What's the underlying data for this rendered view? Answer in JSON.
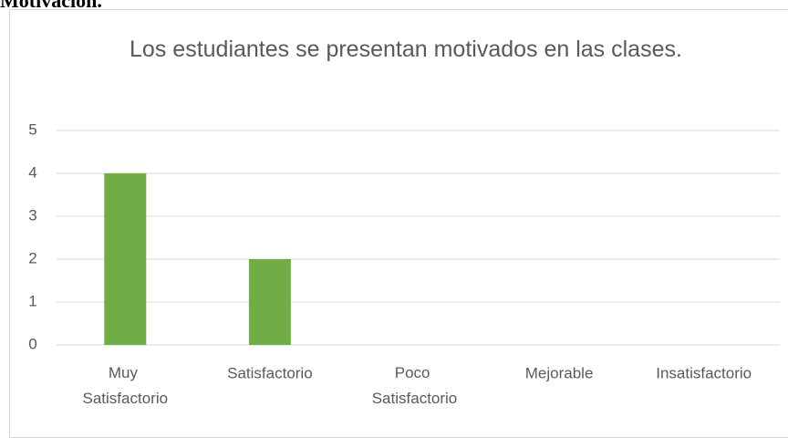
{
  "heading": "Motivación.",
  "chart_data": {
    "type": "bar",
    "title": "Los estudiantes se presentan motivados en las clases.",
    "categories": [
      "Muy Satisfactorio",
      "Satisfactorio",
      "Poco Satisfactorio",
      "Mejorable",
      "Insatisfactorio"
    ],
    "values": [
      4,
      2,
      0,
      0,
      0
    ],
    "color": "#70ad47",
    "ylim": [
      0,
      5
    ],
    "yticks": [
      0,
      1,
      2,
      3,
      4,
      5
    ],
    "grid": true
  }
}
